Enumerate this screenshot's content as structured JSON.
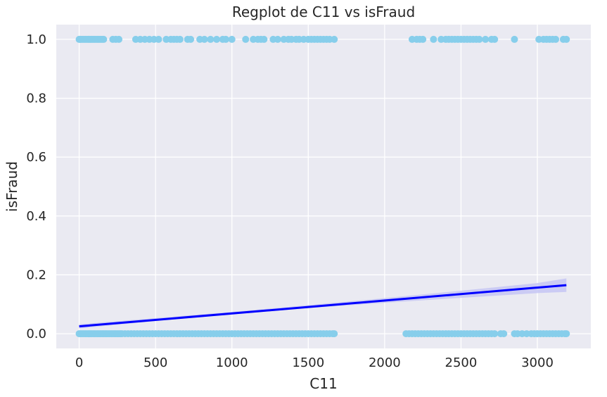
{
  "chart_data": {
    "type": "scatter",
    "title": "Regplot de C11 vs isFraud",
    "xlabel": "C11",
    "ylabel": "isFraud",
    "xlim": [
      -150,
      3350
    ],
    "ylim": [
      -0.05,
      1.05
    ],
    "xticks": [
      0,
      500,
      1000,
      1500,
      2000,
      2500,
      3000
    ],
    "yticks": [
      0.0,
      0.2,
      0.4,
      0.6,
      0.8,
      1.0
    ],
    "xtick_labels": [
      "0",
      "500",
      "1000",
      "1500",
      "2000",
      "2500",
      "3000"
    ],
    "ytick_labels": [
      "0.0",
      "0.2",
      "0.4",
      "0.6",
      "0.8",
      "1.0"
    ],
    "grid": true,
    "background": "#eaeaf2",
    "grid_color": "#ffffff",
    "point_color": "#87ceeb",
    "line_color": "#0000ff",
    "band_color": "#c5c5f5",
    "points_y1": [
      0,
      5,
      10,
      20,
      30,
      40,
      50,
      60,
      70,
      80,
      90,
      100,
      110,
      120,
      130,
      140,
      150,
      160,
      220,
      240,
      260,
      370,
      400,
      430,
      460,
      490,
      520,
      570,
      600,
      620,
      640,
      660,
      710,
      730,
      790,
      820,
      860,
      900,
      940,
      960,
      1000,
      1090,
      1140,
      1170,
      1190,
      1210,
      1270,
      1300,
      1340,
      1370,
      1390,
      1420,
      1440,
      1470,
      1500,
      1520,
      1540,
      1560,
      1580,
      1600,
      1620,
      1640,
      1670,
      2180,
      2210,
      2230,
      2250,
      2320,
      2370,
      2400,
      2420,
      2440,
      2460,
      2480,
      2500,
      2520,
      2540,
      2560,
      2580,
      2600,
      2620,
      2660,
      2700,
      2720,
      2850,
      3010,
      3040,
      3060,
      3080,
      3100,
      3120,
      3170,
      3190
    ],
    "points_y0": [
      0,
      10,
      20,
      30,
      40,
      50,
      60,
      70,
      80,
      90,
      100,
      110,
      120,
      130,
      140,
      150,
      160,
      170,
      180,
      190,
      200,
      210,
      220,
      230,
      240,
      250,
      260,
      270,
      280,
      300,
      320,
      340,
      360,
      380,
      400,
      420,
      440,
      460,
      480,
      500,
      520,
      540,
      560,
      580,
      600,
      620,
      640,
      660,
      680,
      700,
      720,
      740,
      760,
      780,
      800,
      820,
      840,
      860,
      880,
      900,
      920,
      940,
      960,
      980,
      1000,
      1020,
      1040,
      1060,
      1080,
      1100,
      1120,
      1140,
      1160,
      1180,
      1200,
      1220,
      1240,
      1260,
      1280,
      1300,
      1320,
      1340,
      1360,
      1380,
      1400,
      1420,
      1440,
      1460,
      1480,
      1500,
      1520,
      1540,
      1560,
      1580,
      1600,
      1620,
      1640,
      1660,
      1670,
      2140,
      2160,
      2180,
      2200,
      2220,
      2240,
      2260,
      2280,
      2300,
      2320,
      2340,
      2360,
      2380,
      2400,
      2420,
      2440,
      2460,
      2480,
      2500,
      2520,
      2540,
      2560,
      2580,
      2600,
      2620,
      2640,
      2660,
      2680,
      2700,
      2720,
      2760,
      2780,
      2850,
      2870,
      2900,
      2930,
      2960,
      2980,
      3000,
      3020,
      3040,
      3060,
      3080,
      3100,
      3120,
      3140,
      3160,
      3180,
      3190
    ],
    "regression": {
      "x": [
        0,
        3190
      ],
      "y": [
        0.025,
        0.165
      ]
    },
    "confidence_band": {
      "x": [
        0,
        500,
        1000,
        1500,
        2000,
        2500,
        3000,
        3190
      ],
      "lower": [
        0.018,
        0.043,
        0.066,
        0.087,
        0.105,
        0.122,
        0.138,
        0.142
      ],
      "upper": [
        0.032,
        0.053,
        0.074,
        0.097,
        0.121,
        0.146,
        0.172,
        0.188
      ]
    }
  }
}
